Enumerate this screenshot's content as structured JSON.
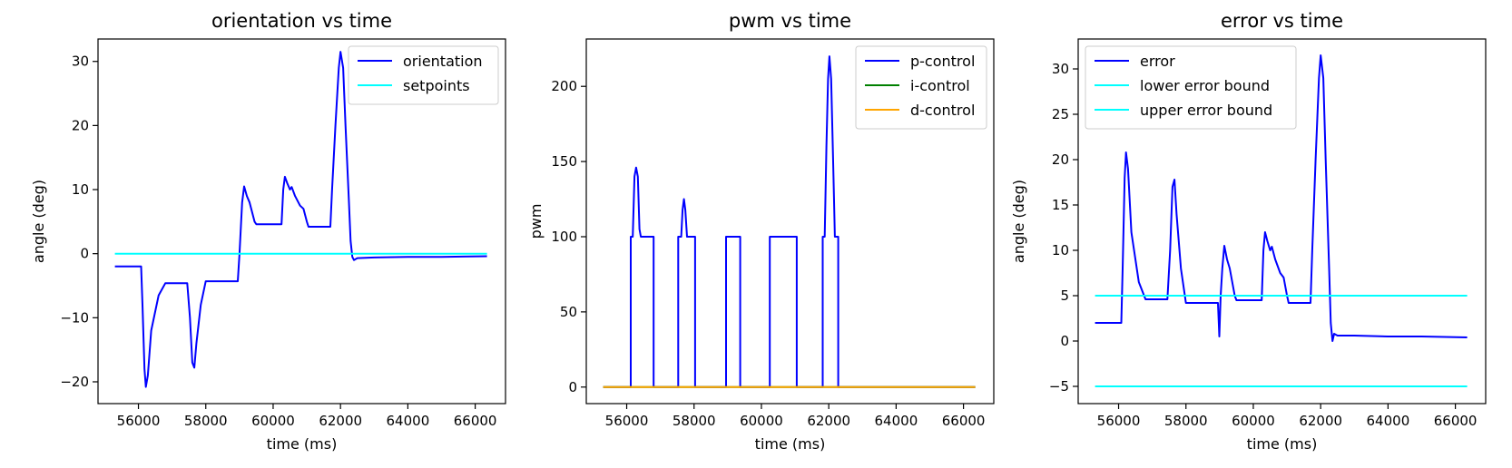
{
  "chart_data": [
    {
      "type": "line",
      "title": "orientation vs time",
      "xlabel": "time (ms)",
      "ylabel": "angle (deg)",
      "xlim": [
        54800,
        66900
      ],
      "ylim": [
        -23.4,
        33.5
      ],
      "xticks": [
        56000,
        58000,
        60000,
        62000,
        64000,
        66000
      ],
      "xtick_labels": [
        "56000",
        "58000",
        "60000",
        "62000",
        "64000",
        "66000"
      ],
      "yticks": [
        -20,
        -10,
        0,
        10,
        20,
        30
      ],
      "ytick_labels": [
        "−20",
        "−10",
        "0",
        "10",
        "20",
        "30"
      ],
      "grid": false,
      "legend_position": "upper right",
      "series": [
        {
          "name": "orientation",
          "color": "#0000ff",
          "points": [
            [
              55300,
              -2
            ],
            [
              56080,
              -2
            ],
            [
              56120,
              -8
            ],
            [
              56180,
              -18
            ],
            [
              56220,
              -20.8
            ],
            [
              56280,
              -19
            ],
            [
              56380,
              -12
            ],
            [
              56600,
              -6.5
            ],
            [
              56800,
              -4.6
            ],
            [
              57450,
              -4.6
            ],
            [
              57530,
              -10
            ],
            [
              57600,
              -17
            ],
            [
              57660,
              -17.8
            ],
            [
              57720,
              -14
            ],
            [
              57850,
              -8
            ],
            [
              58000,
              -4.3
            ],
            [
              58950,
              -4.3
            ],
            [
              59000,
              0
            ],
            [
              59080,
              8
            ],
            [
              59140,
              10.5
            ],
            [
              59220,
              9
            ],
            [
              59300,
              8
            ],
            [
              59450,
              5
            ],
            [
              59500,
              4.6
            ],
            [
              60250,
              4.6
            ],
            [
              60300,
              10
            ],
            [
              60350,
              12
            ],
            [
              60420,
              11
            ],
            [
              60500,
              10
            ],
            [
              60550,
              10.4
            ],
            [
              60650,
              9
            ],
            [
              60800,
              7.5
            ],
            [
              60900,
              7
            ],
            [
              61000,
              5
            ],
            [
              61050,
              4.2
            ],
            [
              61700,
              4.2
            ],
            [
              61750,
              10
            ],
            [
              61850,
              20
            ],
            [
              61950,
              29
            ],
            [
              62000,
              31.5
            ],
            [
              62080,
              29
            ],
            [
              62150,
              20
            ],
            [
              62250,
              8
            ],
            [
              62300,
              2
            ],
            [
              62350,
              -0.5
            ],
            [
              62400,
              -1
            ],
            [
              62500,
              -0.7
            ],
            [
              63000,
              -0.6
            ],
            [
              64000,
              -0.5
            ],
            [
              65000,
              -0.5
            ],
            [
              66350,
              -0.4
            ]
          ]
        },
        {
          "name": "setpoints",
          "color": "#00ffff",
          "points": [
            [
              55300,
              0
            ],
            [
              66350,
              0
            ]
          ]
        }
      ]
    },
    {
      "type": "line",
      "title": "pwm vs time",
      "xlabel": "time (ms)",
      "ylabel": "pwm",
      "xlim": [
        54800,
        66900
      ],
      "ylim": [
        -11,
        231.5
      ],
      "xticks": [
        56000,
        58000,
        60000,
        62000,
        64000,
        66000
      ],
      "xtick_labels": [
        "56000",
        "58000",
        "60000",
        "62000",
        "64000",
        "66000"
      ],
      "yticks": [
        0,
        50,
        100,
        150,
        200
      ],
      "ytick_labels": [
        "0",
        "50",
        "100",
        "150",
        "200"
      ],
      "grid": false,
      "legend_position": "upper right",
      "series": [
        {
          "name": "p-control",
          "color": "#0000ff",
          "points": [
            [
              55300,
              0
            ],
            [
              56120,
              0
            ],
            [
              56120,
              100
            ],
            [
              56180,
              100
            ],
            [
              56230,
              140
            ],
            [
              56280,
              146
            ],
            [
              56330,
              140
            ],
            [
              56380,
              105
            ],
            [
              56420,
              100
            ],
            [
              56800,
              100
            ],
            [
              56800,
              0
            ],
            [
              57530,
              0
            ],
            [
              57530,
              100
            ],
            [
              57620,
              100
            ],
            [
              57660,
              118
            ],
            [
              57700,
              125
            ],
            [
              57740,
              118
            ],
            [
              57790,
              100
            ],
            [
              58030,
              100
            ],
            [
              58030,
              0
            ],
            [
              58950,
              0
            ],
            [
              58950,
              100
            ],
            [
              59370,
              100
            ],
            [
              59370,
              0
            ],
            [
              60250,
              0
            ],
            [
              60250,
              100
            ],
            [
              61050,
              100
            ],
            [
              61050,
              0
            ],
            [
              61820,
              0
            ],
            [
              61820,
              100
            ],
            [
              61880,
              100
            ],
            [
              61930,
              160
            ],
            [
              61980,
              205
            ],
            [
              62020,
              220
            ],
            [
              62070,
              205
            ],
            [
              62130,
              150
            ],
            [
              62180,
              100
            ],
            [
              62280,
              100
            ],
            [
              62280,
              0
            ],
            [
              66350,
              0
            ]
          ]
        },
        {
          "name": "i-control",
          "color": "#008000",
          "points": [
            [
              55300,
              0
            ],
            [
              66350,
              0
            ]
          ]
        },
        {
          "name": "d-control",
          "color": "#ffa500",
          "points": [
            [
              55300,
              0
            ],
            [
              66350,
              0
            ]
          ]
        }
      ]
    },
    {
      "type": "line",
      "title": "error vs time",
      "xlabel": "time (ms)",
      "ylabel": "angle (deg)",
      "xlim": [
        54800,
        66900
      ],
      "ylim": [
        -6.9,
        33.3
      ],
      "xticks": [
        56000,
        58000,
        60000,
        62000,
        64000,
        66000
      ],
      "xtick_labels": [
        "56000",
        "58000",
        "60000",
        "62000",
        "64000",
        "66000"
      ],
      "yticks": [
        -5,
        0,
        5,
        10,
        15,
        20,
        25,
        30
      ],
      "ytick_labels": [
        "−5",
        "0",
        "5",
        "10",
        "15",
        "20",
        "25",
        "30"
      ],
      "grid": false,
      "legend_position": "upper left",
      "series": [
        {
          "name": "error",
          "color": "#0000ff",
          "points": [
            [
              55300,
              2
            ],
            [
              56080,
              2
            ],
            [
              56120,
              8
            ],
            [
              56180,
              18
            ],
            [
              56220,
              20.8
            ],
            [
              56280,
              19
            ],
            [
              56380,
              12
            ],
            [
              56600,
              6.5
            ],
            [
              56800,
              4.6
            ],
            [
              57450,
              4.6
            ],
            [
              57530,
              10
            ],
            [
              57600,
              17
            ],
            [
              57660,
              17.8
            ],
            [
              57720,
              14
            ],
            [
              57850,
              8
            ],
            [
              58000,
              4.2
            ],
            [
              58950,
              4.2
            ],
            [
              58990,
              0.5
            ],
            [
              59030,
              5
            ],
            [
              59080,
              8
            ],
            [
              59140,
              10.5
            ],
            [
              59220,
              9
            ],
            [
              59300,
              8
            ],
            [
              59450,
              5
            ],
            [
              59500,
              4.5
            ],
            [
              60250,
              4.5
            ],
            [
              60300,
              10
            ],
            [
              60350,
              12
            ],
            [
              60420,
              11
            ],
            [
              60500,
              10
            ],
            [
              60550,
              10.4
            ],
            [
              60650,
              9
            ],
            [
              60800,
              7.5
            ],
            [
              60900,
              7
            ],
            [
              61000,
              5
            ],
            [
              61050,
              4.2
            ],
            [
              61700,
              4.2
            ],
            [
              61750,
              10
            ],
            [
              61850,
              20
            ],
            [
              61950,
              29
            ],
            [
              62000,
              31.5
            ],
            [
              62080,
              29
            ],
            [
              62150,
              20
            ],
            [
              62250,
              8
            ],
            [
              62300,
              2
            ],
            [
              62350,
              0
            ],
            [
              62400,
              0.8
            ],
            [
              62500,
              0.6
            ],
            [
              63000,
              0.6
            ],
            [
              64000,
              0.5
            ],
            [
              65000,
              0.5
            ],
            [
              66350,
              0.4
            ]
          ]
        },
        {
          "name": "lower error bound",
          "color": "#00ffff",
          "points": [
            [
              55300,
              5
            ],
            [
              66350,
              5
            ]
          ]
        },
        {
          "name": "upper error bound",
          "color": "#00ffff",
          "points": [
            [
              55300,
              -5
            ],
            [
              66350,
              -5
            ]
          ]
        }
      ]
    }
  ]
}
